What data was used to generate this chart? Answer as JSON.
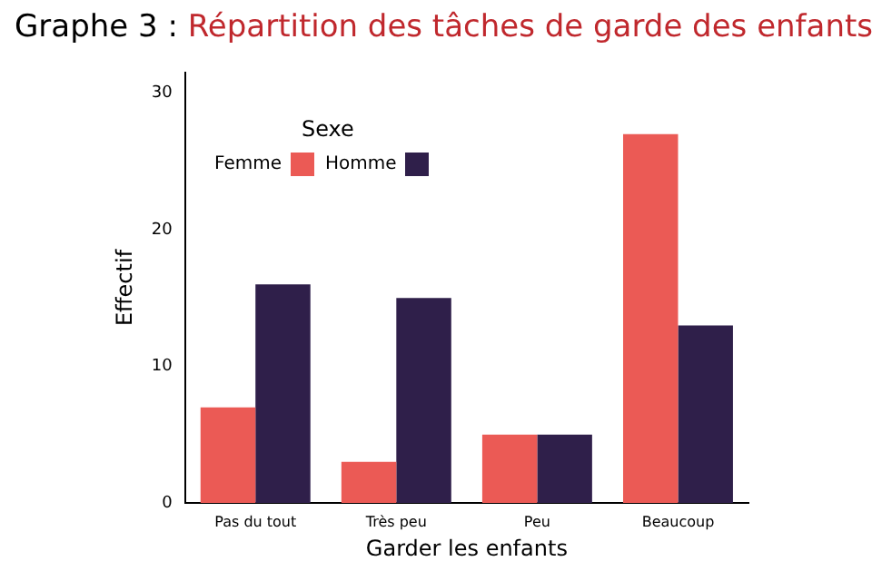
{
  "chart_data": {
    "type": "bar",
    "title": "Graphe 3 : Répartition des tâches de garde des enfants",
    "xlabel": "Garder les enfants",
    "ylabel": "Effectif",
    "legend_title": "Sexe",
    "legend": "top left",
    "grid": false,
    "categories": [
      "Pas du tout",
      "Très peu",
      "Peu",
      "Beaucoup"
    ],
    "ylim": [
      0,
      31.5
    ],
    "yticks": [
      0,
      10,
      20,
      30
    ],
    "series": [
      {
        "name": "Femme",
        "color": "#eb5a55",
        "values": [
          7,
          3,
          5,
          27
        ]
      },
      {
        "name": "Homme",
        "color": "#2f1f4a",
        "values": [
          16,
          15,
          5,
          13
        ]
      }
    ]
  }
}
